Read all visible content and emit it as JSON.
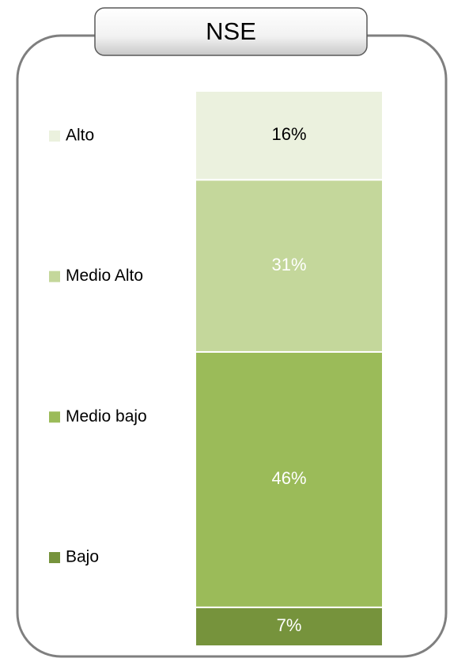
{
  "chart_data": {
    "type": "stacked_bar",
    "title": "NSE",
    "series": [
      {
        "name": "Bajo",
        "color": "#76933c",
        "label_color": "#ffffff",
        "values": [
          7
        ],
        "value_labels": [
          "7%"
        ]
      },
      {
        "name": "Medio bajo",
        "color": "#9bbb59",
        "label_color": "#ffffff",
        "values": [
          46
        ],
        "value_labels": [
          "46%"
        ]
      },
      {
        "name": "Medio Alto",
        "color": "#c4d79b",
        "label_color": "#ffffff",
        "values": [
          31
        ],
        "value_labels": [
          "31%"
        ]
      },
      {
        "name": "Alto",
        "color": "#ebf1de",
        "label_color": "#000000",
        "values": [
          16
        ],
        "value_labels": [
          "16%"
        ]
      }
    ]
  }
}
